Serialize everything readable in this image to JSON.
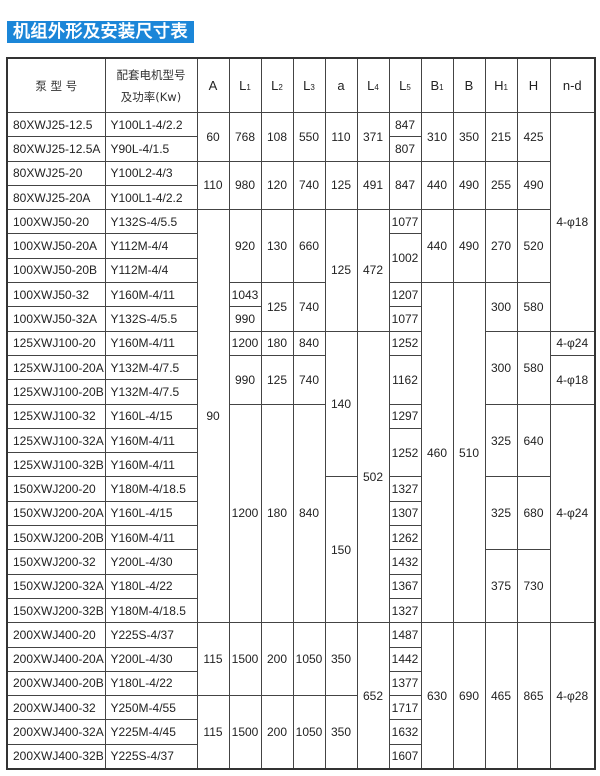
{
  "title": "机组外形及安装尺寸表",
  "header": {
    "pump": "泵 型 号",
    "motor_line1": "配套电机型号",
    "motor_line2": "及功率(Kw)",
    "dims": [
      {
        "main": "A",
        "sub": ""
      },
      {
        "main": "L",
        "sub": "1"
      },
      {
        "main": "L",
        "sub": "2"
      },
      {
        "main": "L",
        "sub": "3"
      },
      {
        "main": "a",
        "sub": ""
      },
      {
        "main": "L",
        "sub": "4"
      },
      {
        "main": "L",
        "sub": "5"
      },
      {
        "main": "B",
        "sub": "1"
      },
      {
        "main": "B",
        "sub": ""
      },
      {
        "main": "H",
        "sub": "1"
      },
      {
        "main": "H",
        "sub": ""
      },
      {
        "main": "n-d",
        "sub": ""
      }
    ]
  },
  "rows": [
    {
      "pump": "80XWJ25-12.5",
      "motor": "Y100L1-4/2.2"
    },
    {
      "pump": "80XWJ25-12.5A",
      "motor": "Y90L-4/1.5"
    },
    {
      "pump": "80XWJ25-20",
      "motor": "Y100L2-4/3"
    },
    {
      "pump": "80XWJ25-20A",
      "motor": "Y100L1-4/2.2"
    },
    {
      "pump": "100XWJ50-20",
      "motor": "Y132S-4/5.5"
    },
    {
      "pump": "100XWJ50-20A",
      "motor": "Y112M-4/4"
    },
    {
      "pump": "100XWJ50-20B",
      "motor": "Y112M-4/4"
    },
    {
      "pump": "100XWJ50-32",
      "motor": "Y160M-4/11"
    },
    {
      "pump": "100XWJ50-32A",
      "motor": "Y132S-4/5.5"
    },
    {
      "pump": "125XWJ100-20",
      "motor": "Y160M-4/11"
    },
    {
      "pump": "125XWJ100-20A",
      "motor": "Y132M-4/7.5"
    },
    {
      "pump": "125XWJ100-20B",
      "motor": "Y132M-4/7.5"
    },
    {
      "pump": "125XWJ100-32",
      "motor": "Y160L-4/15"
    },
    {
      "pump": "125XWJ100-32A",
      "motor": "Y160M-4/11"
    },
    {
      "pump": "125XWJ100-32B",
      "motor": "Y160M-4/11"
    },
    {
      "pump": "150XWJ200-20",
      "motor": "Y180M-4/18.5"
    },
    {
      "pump": "150XWJ200-20A",
      "motor": "Y160L-4/15"
    },
    {
      "pump": "150XWJ200-20B",
      "motor": "Y160M-4/11"
    },
    {
      "pump": "150XWJ200-32",
      "motor": "Y200L-4/30"
    },
    {
      "pump": "150XWJ200-32A",
      "motor": "Y180L-4/22"
    },
    {
      "pump": "150XWJ200-32B",
      "motor": "Y180M-4/18.5"
    },
    {
      "pump": "200XWJ400-20",
      "motor": "Y225S-4/37"
    },
    {
      "pump": "200XWJ400-20A",
      "motor": "Y200L-4/30"
    },
    {
      "pump": "200XWJ400-20B",
      "motor": "Y180L-4/22"
    },
    {
      "pump": "200XWJ400-32",
      "motor": "Y250M-4/55"
    },
    {
      "pump": "200XWJ400-32A",
      "motor": "Y225M-4/45"
    },
    {
      "pump": "200XWJ400-32B",
      "motor": "Y225S-4/37"
    }
  ],
  "merged_columns": {
    "A": [
      [
        "60",
        2
      ],
      [
        "110",
        2
      ],
      [
        "90",
        17
      ],
      [
        "115",
        3
      ],
      [
        "115",
        3
      ]
    ],
    "L1": [
      [
        "768",
        2
      ],
      [
        "980",
        2
      ],
      [
        "920",
        3
      ],
      [
        "1043",
        1
      ],
      [
        "990",
        1
      ],
      [
        "1200",
        1
      ],
      [
        "990",
        2
      ],
      [
        "1200",
        9
      ],
      [
        "1500",
        3
      ],
      [
        "1500",
        3
      ]
    ],
    "L2": [
      [
        "108",
        2
      ],
      [
        "120",
        2
      ],
      [
        "130",
        3
      ],
      [
        "125",
        2
      ],
      [
        "180",
        1
      ],
      [
        "125",
        2
      ],
      [
        "180",
        9
      ],
      [
        "200",
        3
      ],
      [
        "200",
        3
      ]
    ],
    "L3": [
      [
        "550",
        2
      ],
      [
        "740",
        2
      ],
      [
        "660",
        3
      ],
      [
        "740",
        2
      ],
      [
        "840",
        1
      ],
      [
        "740",
        2
      ],
      [
        "840",
        9
      ],
      [
        "1050",
        3
      ],
      [
        "1050",
        3
      ]
    ],
    "a": [
      [
        "110",
        2
      ],
      [
        "125",
        2
      ],
      [
        "125",
        5
      ],
      [
        "140",
        6
      ],
      [
        "150",
        6
      ],
      [
        "350",
        3
      ],
      [
        "350",
        3
      ]
    ],
    "L4": [
      [
        "371",
        2
      ],
      [
        "491",
        2
      ],
      [
        "472",
        5
      ],
      [
        "502",
        12
      ],
      [
        "652",
        6
      ]
    ],
    "L5": [
      [
        "847",
        1
      ],
      [
        "807",
        1
      ],
      [
        "847",
        2
      ],
      [
        "1077",
        1
      ],
      [
        "1002",
        2
      ],
      [
        "1207",
        1
      ],
      [
        "1077",
        1
      ],
      [
        "1252",
        1
      ],
      [
        "1162",
        2
      ],
      [
        "1297",
        1
      ],
      [
        "1252",
        2
      ],
      [
        "1327",
        1
      ],
      [
        "1307",
        1
      ],
      [
        "1262",
        1
      ],
      [
        "1432",
        1
      ],
      [
        "1367",
        1
      ],
      [
        "1327",
        1
      ],
      [
        "1487",
        1
      ],
      [
        "1442",
        1
      ],
      [
        "1377",
        1
      ],
      [
        "1717",
        1
      ],
      [
        "1632",
        1
      ],
      [
        "1607",
        1
      ]
    ],
    "B1": [
      [
        "310",
        2
      ],
      [
        "440",
        2
      ],
      [
        "440",
        3
      ],
      [
        "460",
        14
      ],
      [
        "630",
        6
      ]
    ],
    "B": [
      [
        "350",
        2
      ],
      [
        "490",
        2
      ],
      [
        "490",
        3
      ],
      [
        "510",
        14
      ],
      [
        "690",
        6
      ]
    ],
    "H1": [
      [
        "215",
        2
      ],
      [
        "255",
        2
      ],
      [
        "270",
        3
      ],
      [
        "300",
        2
      ],
      [
        "300",
        3
      ],
      [
        "325",
        3
      ],
      [
        "325",
        3
      ],
      [
        "375",
        3
      ],
      [
        "465",
        6
      ]
    ],
    "H": [
      [
        "425",
        2
      ],
      [
        "490",
        2
      ],
      [
        "520",
        3
      ],
      [
        "580",
        2
      ],
      [
        "580",
        3
      ],
      [
        "640",
        3
      ],
      [
        "680",
        3
      ],
      [
        "730",
        3
      ],
      [
        "865",
        6
      ]
    ],
    "n-d": [
      [
        "4-φ18",
        9
      ],
      [
        "4-φ24",
        1
      ],
      [
        "4-φ18",
        2
      ],
      [
        "4-φ24",
        9
      ],
      [
        "4-φ28",
        6
      ]
    ]
  }
}
